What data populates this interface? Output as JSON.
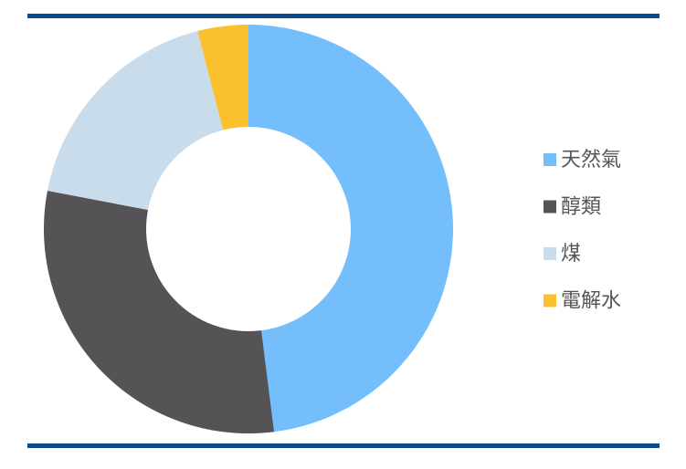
{
  "chart_data": {
    "type": "donut",
    "categories": [
      "天然氣",
      "醇類",
      "煤",
      "電解水"
    ],
    "values": [
      48,
      30,
      18,
      4
    ],
    "colors": [
      "#74bffb",
      "#555356",
      "#c9dcec",
      "#fbc02d"
    ]
  }
}
